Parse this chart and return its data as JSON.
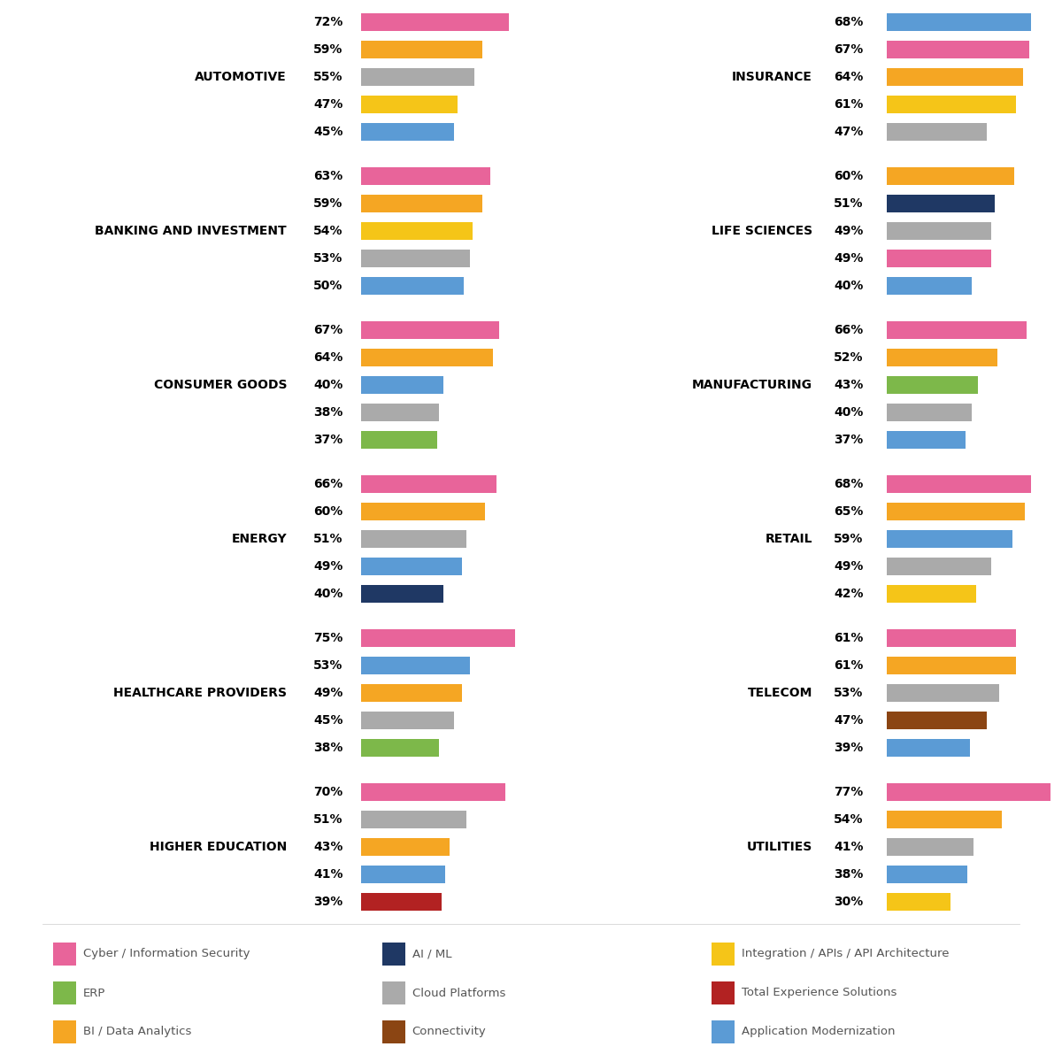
{
  "industries": {
    "AUTOMOTIVE": {
      "values": [
        72,
        59,
        55,
        47,
        45
      ],
      "colors": [
        "#E8649A",
        "#F5A623",
        "#AAAAAA",
        "#F5C518",
        "#5B9BD5"
      ]
    },
    "BANKING AND INVESTMENT": {
      "values": [
        63,
        59,
        54,
        53,
        50
      ],
      "colors": [
        "#E8649A",
        "#F5A623",
        "#F5C518",
        "#AAAAAA",
        "#5B9BD5"
      ]
    },
    "CONSUMER GOODS": {
      "values": [
        67,
        64,
        40,
        38,
        37
      ],
      "colors": [
        "#E8649A",
        "#F5A623",
        "#5B9BD5",
        "#AAAAAA",
        "#7DB84A"
      ]
    },
    "ENERGY": {
      "values": [
        66,
        60,
        51,
        49,
        40
      ],
      "colors": [
        "#E8649A",
        "#F5A623",
        "#AAAAAA",
        "#5B9BD5",
        "#1F3864"
      ]
    },
    "HEALTHCARE PROVIDERS": {
      "values": [
        75,
        53,
        49,
        45,
        38
      ],
      "colors": [
        "#E8649A",
        "#5B9BD5",
        "#F5A623",
        "#AAAAAA",
        "#7DB84A"
      ]
    },
    "HIGHER EDUCATION": {
      "values": [
        70,
        51,
        43,
        41,
        39
      ],
      "colors": [
        "#E8649A",
        "#AAAAAA",
        "#F5A623",
        "#5B9BD5",
        "#B22222"
      ]
    },
    "INSURANCE": {
      "values": [
        68,
        67,
        64,
        61,
        47
      ],
      "colors": [
        "#5B9BD5",
        "#E8649A",
        "#F5A623",
        "#F5C518",
        "#AAAAAA"
      ]
    },
    "LIFE SCIENCES": {
      "values": [
        60,
        51,
        49,
        49,
        40
      ],
      "colors": [
        "#F5A623",
        "#1F3864",
        "#AAAAAA",
        "#E8649A",
        "#5B9BD5"
      ]
    },
    "MANUFACTURING": {
      "values": [
        66,
        52,
        43,
        40,
        37
      ],
      "colors": [
        "#E8649A",
        "#F5A623",
        "#7DB84A",
        "#AAAAAA",
        "#5B9BD5"
      ]
    },
    "RETAIL": {
      "values": [
        68,
        65,
        59,
        49,
        42
      ],
      "colors": [
        "#E8649A",
        "#F5A623",
        "#5B9BD5",
        "#AAAAAA",
        "#F5C518"
      ]
    },
    "TELECOM": {
      "values": [
        61,
        61,
        53,
        47,
        39
      ],
      "colors": [
        "#E8649A",
        "#F5A623",
        "#AAAAAA",
        "#8B4513",
        "#5B9BD5"
      ]
    },
    "UTILITIES": {
      "values": [
        77,
        54,
        41,
        38,
        30
      ],
      "colors": [
        "#E8649A",
        "#F5A623",
        "#AAAAAA",
        "#5B9BD5",
        "#F5C518"
      ]
    }
  },
  "legend": [
    {
      "label": "Cyber / Information Security",
      "color": "#E8649A"
    },
    {
      "label": "AI / ML",
      "color": "#1F3864"
    },
    {
      "label": "Integration / APIs / API Architecture",
      "color": "#F5C518"
    },
    {
      "label": "ERP",
      "color": "#7DB84A"
    },
    {
      "label": "Cloud Platforms",
      "color": "#AAAAAA"
    },
    {
      "label": "Total Experience Solutions",
      "color": "#B22222"
    },
    {
      "label": "BI / Data Analytics",
      "color": "#F5A623"
    },
    {
      "label": "Connectivity",
      "color": "#8B4513"
    },
    {
      "label": "Application Modernization",
      "color": "#5B9BD5"
    }
  ],
  "left_industries": [
    "AUTOMOTIVE",
    "BANKING AND INVESTMENT",
    "CONSUMER GOODS",
    "ENERGY",
    "HEALTHCARE PROVIDERS",
    "HIGHER EDUCATION"
  ],
  "right_industries": [
    "INSURANCE",
    "LIFE SCIENCES",
    "MANUFACTURING",
    "RETAIL",
    "TELECOM",
    "UTILITIES"
  ],
  "max_val": 80,
  "bar_height": 0.65,
  "label_fontsize": 10,
  "pct_fontsize": 10,
  "industry_fontsize": 10
}
